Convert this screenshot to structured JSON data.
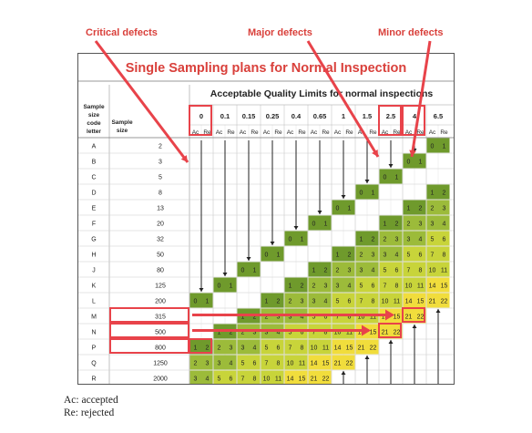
{
  "callouts": {
    "critical": "Critical defects",
    "major": "Major defects",
    "minor": "Minor defects"
  },
  "table": {
    "title": "Single Sampling plans for Normal Inspection",
    "subtitle": "Acceptable Quality Limits for normal inspections",
    "header_code": "Sample size code letter",
    "header_size": "Sample size",
    "aql": [
      "0",
      "0.1",
      "0.15",
      "0.25",
      "0.4",
      "0.65",
      "1",
      "1.5",
      "2.5",
      "4",
      "6.5"
    ],
    "ac": "Ac",
    "re": "Re",
    "letters": [
      "A",
      "B",
      "C",
      "D",
      "E",
      "F",
      "G",
      "H",
      "J",
      "K",
      "L",
      "M",
      "N",
      "P",
      "Q",
      "R"
    ],
    "sizes": [
      "2",
      "3",
      "5",
      "8",
      "13",
      "20",
      "32",
      "50",
      "80",
      "125",
      "200",
      "315",
      "500",
      "800",
      "1250",
      "2000"
    ],
    "rows": [
      [
        null,
        null,
        null,
        null,
        null,
        null,
        null,
        null,
        null,
        null,
        [
          0,
          1
        ]
      ],
      [
        null,
        null,
        null,
        null,
        null,
        null,
        null,
        null,
        null,
        [
          0,
          1
        ],
        null
      ],
      [
        null,
        null,
        null,
        null,
        null,
        null,
        null,
        null,
        [
          0,
          1
        ],
        null,
        null
      ],
      [
        null,
        null,
        null,
        null,
        null,
        null,
        null,
        [
          0,
          1
        ],
        null,
        null,
        [
          1,
          2
        ]
      ],
      [
        null,
        null,
        null,
        null,
        null,
        null,
        [
          0,
          1
        ],
        null,
        null,
        [
          1,
          2
        ],
        [
          2,
          3
        ]
      ],
      [
        null,
        null,
        null,
        null,
        null,
        [
          0,
          1
        ],
        null,
        null,
        [
          1,
          2
        ],
        [
          2,
          3
        ],
        [
          3,
          4
        ]
      ],
      [
        null,
        null,
        null,
        null,
        [
          0,
          1
        ],
        null,
        null,
        [
          1,
          2
        ],
        [
          2,
          3
        ],
        [
          3,
          4
        ],
        [
          5,
          6
        ]
      ],
      [
        null,
        null,
        null,
        [
          0,
          1
        ],
        null,
        null,
        [
          1,
          2
        ],
        [
          2,
          3
        ],
        [
          3,
          4
        ],
        [
          5,
          6
        ],
        [
          7,
          8
        ]
      ],
      [
        null,
        null,
        [
          0,
          1
        ],
        null,
        null,
        [
          1,
          2
        ],
        [
          2,
          3
        ],
        [
          3,
          4
        ],
        [
          5,
          6
        ],
        [
          7,
          8
        ],
        [
          10,
          11
        ]
      ],
      [
        null,
        [
          0,
          1
        ],
        null,
        null,
        [
          1,
          2
        ],
        [
          2,
          3
        ],
        [
          3,
          4
        ],
        [
          5,
          6
        ],
        [
          7,
          8
        ],
        [
          10,
          11
        ],
        [
          14,
          15
        ]
      ],
      [
        [
          0,
          1
        ],
        null,
        null,
        [
          1,
          2
        ],
        [
          2,
          3
        ],
        [
          3,
          4
        ],
        [
          5,
          6
        ],
        [
          7,
          8
        ],
        [
          10,
          11
        ],
        [
          14,
          15
        ],
        [
          21,
          22
        ]
      ],
      [
        null,
        null,
        [
          1,
          2
        ],
        [
          2,
          3
        ],
        [
          3,
          4
        ],
        [
          5,
          6
        ],
        [
          7,
          8
        ],
        [
          10,
          11
        ],
        [
          14,
          15
        ],
        [
          21,
          22
        ],
        null
      ],
      [
        null,
        [
          1,
          2
        ],
        [
          2,
          3
        ],
        [
          3,
          4
        ],
        [
          5,
          6
        ],
        [
          7,
          8
        ],
        [
          10,
          11
        ],
        [
          14,
          15
        ],
        [
          21,
          22
        ],
        null,
        null
      ],
      [
        [
          1,
          2
        ],
        [
          2,
          3
        ],
        [
          3,
          4
        ],
        [
          5,
          6
        ],
        [
          7,
          8
        ],
        [
          10,
          11
        ],
        [
          14,
          15
        ],
        [
          21,
          22
        ],
        null,
        null,
        null
      ],
      [
        [
          2,
          3
        ],
        [
          3,
          4
        ],
        [
          5,
          6
        ],
        [
          7,
          8
        ],
        [
          10,
          11
        ],
        [
          14,
          15
        ],
        [
          21,
          22
        ],
        null,
        null,
        null,
        null
      ],
      [
        [
          3,
          4
        ],
        [
          5,
          6
        ],
        [
          7,
          8
        ],
        [
          10,
          11
        ],
        [
          14,
          15
        ],
        [
          21,
          22
        ],
        null,
        null,
        null,
        null,
        null
      ]
    ],
    "pass_arrow": "arrow-down-icon",
    "pass_arrow_up": "arrow-up-icon"
  },
  "notes": {
    "accepted": "Ac: accepted",
    "rejected": "Re: rejected"
  },
  "colors": {
    "accent": "#d9403b",
    "dark_green": "#6f9a2c",
    "mid_green": "#9cbb3a",
    "yellow_green": "#c8d43a",
    "yellow": "#f1dd3c",
    "highlight": "#e8434a"
  }
}
